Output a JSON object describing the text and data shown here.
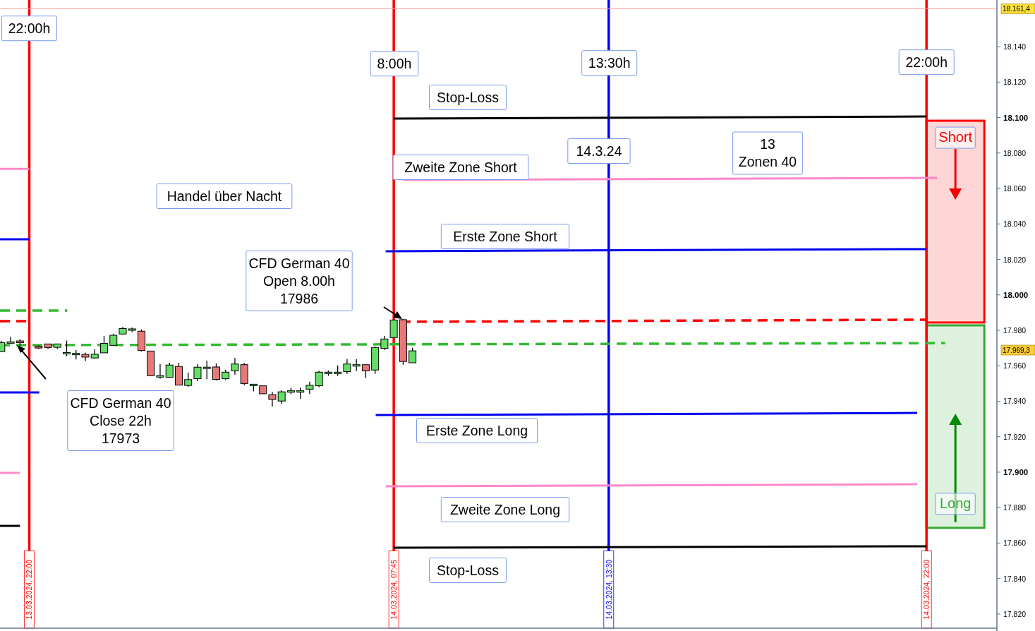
{
  "chart_data": {
    "type": "candlestick",
    "x": [
      "2024-03-13T21:15",
      "2024-03-13T21:30",
      "2024-03-13T21:45",
      "2024-03-13T22:15",
      "2024-03-13T22:30",
      "2024-03-13T22:45",
      "2024-03-13T23:00",
      "2024-03-13T23:15",
      "2024-03-13T23:30",
      "2024-03-13T23:45",
      "2024-03-14T00:00",
      "2024-03-14T00:15",
      "2024-03-14T00:30",
      "2024-03-14T00:45",
      "2024-03-14T01:00",
      "2024-03-14T01:15",
      "2024-03-14T01:30",
      "2024-03-14T01:45",
      "2024-03-14T02:00",
      "2024-03-14T02:15",
      "2024-03-14T02:30",
      "2024-03-14T02:45",
      "2024-03-14T03:00",
      "2024-03-14T03:15",
      "2024-03-14T03:30",
      "2024-03-14T03:45",
      "2024-03-14T04:00",
      "2024-03-14T04:15",
      "2024-03-14T04:30",
      "2024-03-14T04:45",
      "2024-03-14T05:00",
      "2024-03-14T05:15",
      "2024-03-14T05:30",
      "2024-03-14T05:45",
      "2024-03-14T06:00",
      "2024-03-14T06:15",
      "2024-03-14T06:30",
      "2024-03-14T06:45",
      "2024-03-14T07:00",
      "2024-03-14T07:15",
      "2024-03-14T07:30",
      "2024-03-14T07:45",
      "2024-03-14T08:00",
      "2024-03-14T08:15"
    ],
    "ohlc": [
      [
        17968,
        17974,
        17968,
        17973
      ],
      [
        17973.5,
        17976.3,
        17972.6,
        17973.5
      ],
      [
        17974,
        17975,
        17971,
        17973
      ],
      [
        17971,
        17971.5,
        17969.5,
        17970
      ],
      [
        17972.3,
        17972.3,
        17969.6,
        17970.3
      ],
      [
        17970.4,
        17972.3,
        17969.5,
        17972.3
      ],
      [
        17967.5,
        17974.2,
        17965.3,
        17967.5
      ],
      [
        17967,
        17968.9,
        17963.6,
        17967
      ],
      [
        17966.4,
        17967.5,
        17962.6,
        17964.9
      ],
      [
        17964.4,
        17969.3,
        17964,
        17966.5
      ],
      [
        17967.3,
        17976.8,
        17967.3,
        17972.6
      ],
      [
        17971.5,
        17978.1,
        17971.5,
        17977.2
      ],
      [
        17977.9,
        17981.9,
        17977.9,
        17981
      ],
      [
        17980.8,
        17981.6,
        17979,
        17980.8
      ],
      [
        17979.5,
        17980.5,
        17968,
        17968.6
      ],
      [
        17968.3,
        17968.3,
        17954.4,
        17954.4
      ],
      [
        17953.6,
        17960.9,
        17952.7,
        17954.5
      ],
      [
        17953.5,
        17961.7,
        17953.5,
        17960.4
      ],
      [
        17959.6,
        17961.7,
        17949.1,
        17949.1
      ],
      [
        17948.9,
        17956.2,
        17948,
        17952.2
      ],
      [
        17952.7,
        17960.9,
        17951.3,
        17959.2
      ],
      [
        17959.2,
        17962.9,
        17952.4,
        17959.2
      ],
      [
        17959.3,
        17961.3,
        17951.7,
        17952.3
      ],
      [
        17952.7,
        17957.7,
        17952,
        17956.4
      ],
      [
        17957.2,
        17964.4,
        17955,
        17961
      ],
      [
        17960.6,
        17961.6,
        17949,
        17950
      ],
      [
        17949.6,
        17949.6,
        17945.6,
        17949.6
      ],
      [
        17948.7,
        17948.7,
        17944.2,
        17944.2
      ],
      [
        17943.7,
        17945.3,
        17937,
        17941
      ],
      [
        17940.1,
        17946.2,
        17938.6,
        17945.3
      ],
      [
        17945.9,
        17947.6,
        17944,
        17945.9
      ],
      [
        17945.9,
        17947.6,
        17941.4,
        17945.9
      ],
      [
        17946.8,
        17951,
        17944.1,
        17949
      ],
      [
        17948.7,
        17957.2,
        17947.9,
        17956.4
      ],
      [
        17955.6,
        17957.3,
        17954.3,
        17956.4
      ],
      [
        17955.6,
        17960.2,
        17954.3,
        17956.4
      ],
      [
        17956.7,
        17963.7,
        17955.4,
        17961
      ],
      [
        17960.6,
        17963.7,
        17957,
        17960.6
      ],
      [
        17960.6,
        17960.6,
        17953.1,
        17957.1
      ],
      [
        17957.6,
        17970.8,
        17955.3,
        17970.3
      ],
      [
        17969.8,
        17976.8,
        17968.9,
        17975.1
      ],
      [
        17975.9,
        17986.5,
        17975.9,
        17985.8
      ],
      [
        17986,
        17986.5,
        17960.6,
        17962.4
      ],
      [
        17961.7,
        17970.2,
        17961.7,
        17968.4
      ]
    ],
    "series": [
      {
        "type": "line",
        "color": "#ff88c8",
        "line_style": "solid",
        "x": [
          "2024-03-13T21:13",
          "2024-03-13T22:00"
        ],
        "values": [
          18071.1,
          18071.1
        ]
      },
      {
        "type": "line",
        "color": "#0000ee",
        "line_style": "solid",
        "x": [
          "2024-03-13T21:13",
          "2024-03-13T22:00"
        ],
        "values": [
          18031.3,
          18031.3
        ]
      },
      {
        "type": "line",
        "color": "#33bb33",
        "line_style": "dashed",
        "x": [
          "2024-03-13T21:13",
          "2024-03-13T23:01"
        ],
        "values": [
          17991.1,
          17991.1
        ]
      },
      {
        "type": "line",
        "color": "#ff0000",
        "line_style": "dashed",
        "x": [
          "2024-03-13T21:13",
          "2024-03-13T22:00"
        ],
        "values": [
          17985.2,
          17985.2
        ]
      },
      {
        "type": "line",
        "color": "#0000ee",
        "line_style": "solid",
        "x": [
          "2024-03-13T21:13",
          "2024-03-13T22:16"
        ],
        "values": [
          17945,
          17945
        ]
      },
      {
        "type": "line",
        "color": "#ff88c8",
        "line_style": "solid",
        "x": [
          "2024-03-13T21:13",
          "2024-03-13T21:45"
        ],
        "values": [
          17899.6,
          17899.6
        ]
      },
      {
        "type": "line",
        "color": "#000000",
        "line_style": "solid",
        "x": [
          "2024-03-13T21:13",
          "2024-03-13T21:45"
        ],
        "values": [
          17869.7,
          17869.7
        ]
      },
      {
        "type": "line",
        "color": "#000000",
        "line_style": "solid",
        "x": [
          "2024-03-14T07:45",
          "2024-03-14T22:00"
        ],
        "values": [
          18099.4,
          18100.6
        ]
      },
      {
        "type": "line",
        "color": "#ff88c8",
        "line_style": "solid",
        "x": [
          "2024-03-14T08:00",
          "2024-03-14T22:17"
        ],
        "values": [
          18064.8,
          18066
        ]
      },
      {
        "type": "line",
        "color": "#0000ee",
        "line_style": "solid",
        "x": [
          "2024-03-14T07:32",
          "2024-03-14T22:00"
        ],
        "values": [
          18024.6,
          18025.8
        ]
      },
      {
        "type": "line",
        "color": "#ff0000",
        "line_style": "dashed",
        "x": [
          "2024-03-14T07:56",
          "2024-03-14T22:00"
        ],
        "values": [
          17984.8,
          17986
        ]
      },
      {
        "type": "line",
        "color": "#33bb33",
        "line_style": "dashed",
        "x": [
          "2024-03-13T21:13",
          "2024-03-14T22:30"
        ],
        "values": [
          17971.6,
          17972.8
        ]
      },
      {
        "type": "line",
        "color": "#0000ee",
        "line_style": "solid",
        "x": [
          "2024-03-14T07:16",
          "2024-03-14T21:45"
        ],
        "values": [
          17932.2,
          17933.4
        ]
      },
      {
        "type": "line",
        "color": "#ff88c8",
        "line_style": "solid",
        "x": [
          "2024-03-14T07:32",
          "2024-03-14T21:45"
        ],
        "values": [
          17892,
          17893.2
        ]
      },
      {
        "type": "line",
        "color": "#000000",
        "line_style": "solid",
        "x": [
          "2024-03-14T07:45",
          "2024-03-14T22:00"
        ],
        "values": [
          17857.4,
          17858.2
        ]
      }
    ],
    "ref_lines": [
      {
        "axis": "x",
        "value": "2024-03-13T22:00",
        "color": "#ff0000"
      },
      {
        "axis": "x",
        "value": "2024-03-14T07:45",
        "color": "#ff0000"
      },
      {
        "axis": "x",
        "value": "2024-03-14T13:30",
        "color": "#0000ff"
      },
      {
        "axis": "x",
        "value": "2024-03-14T22:00",
        "color": "#ff0000"
      },
      {
        "axis": "y",
        "value": 18161.4,
        "label": "18.161,4",
        "color": "#ff9999"
      }
    ],
    "bands": [
      {
        "axis": "y",
        "from": 17984.4,
        "to": 18098.2,
        "label": "Short",
        "color": "#ff0000"
      },
      {
        "axis": "y",
        "from": 17868.6,
        "to": 17982.8,
        "label": "Long",
        "color": "#33aa33"
      }
    ],
    "annotations": [
      {
        "text": "22:00h",
        "x": "2024-03-13T22:00",
        "y": 18150.3
      },
      {
        "text": "8:00h",
        "x": "2024-03-14T07:46",
        "y": 18130.4
      },
      {
        "text": "13:30h",
        "x": "2024-03-14T13:31",
        "y": 18130.8
      },
      {
        "text": "22:00h",
        "x": "2024-03-14T22:00",
        "y": 18131.2
      },
      "Stop-Loss",
      "14.3.24",
      "13\nZonen 40",
      "Zweite Zone Short",
      "Handel über Nacht",
      "Erste Zone Short",
      "CFD German 40\nOpen 8.00h\n17986",
      "CFD German 40\nClose 22h\n17973",
      "Erste Zone Long",
      "Zweite Zone Long",
      "Stop-Loss",
      "17.969,3"
    ],
    "xlim": [
      "2024-03-13T21:13",
      "2024-03-14T23:53"
    ],
    "xticks": [
      {
        "value": "2024-03-13T22:00",
        "label": "13.03.2024, 22:00"
      },
      {
        "value": "2024-03-14T07:45",
        "label": "14.03.2024, 07:45"
      },
      {
        "value": "2024-03-14T13:30",
        "label": "14.03.2024, 13:30"
      },
      {
        "value": "2024-03-14T22:00",
        "label": "14.03.2024, 22:00"
      }
    ],
    "ylim": [
      17812,
      18166.3
    ],
    "yticks": [
      {
        "value": 17820,
        "label": "17.820"
      },
      {
        "value": 17840,
        "label": "17.840"
      },
      {
        "value": 17860,
        "label": "17.860"
      },
      {
        "value": 17880,
        "label": "17.880"
      },
      {
        "value": 17900,
        "label": "17.900"
      },
      {
        "value": 17920,
        "label": "17.920"
      },
      {
        "value": 17940,
        "label": "17.940"
      },
      {
        "value": 17960,
        "label": "17.960"
      },
      {
        "value": 17980,
        "label": "17.980"
      },
      {
        "value": 18000,
        "label": "18.000"
      },
      {
        "value": 18020,
        "label": "18.020"
      },
      {
        "value": 18040,
        "label": "18.040"
      },
      {
        "value": 18060,
        "label": "18.060"
      },
      {
        "value": 18080,
        "label": "18.080"
      },
      {
        "value": 18100,
        "label": "18.100"
      },
      {
        "value": 18120,
        "label": "18.120"
      },
      {
        "value": 18140,
        "label": "18.140"
      }
    ]
  }
}
